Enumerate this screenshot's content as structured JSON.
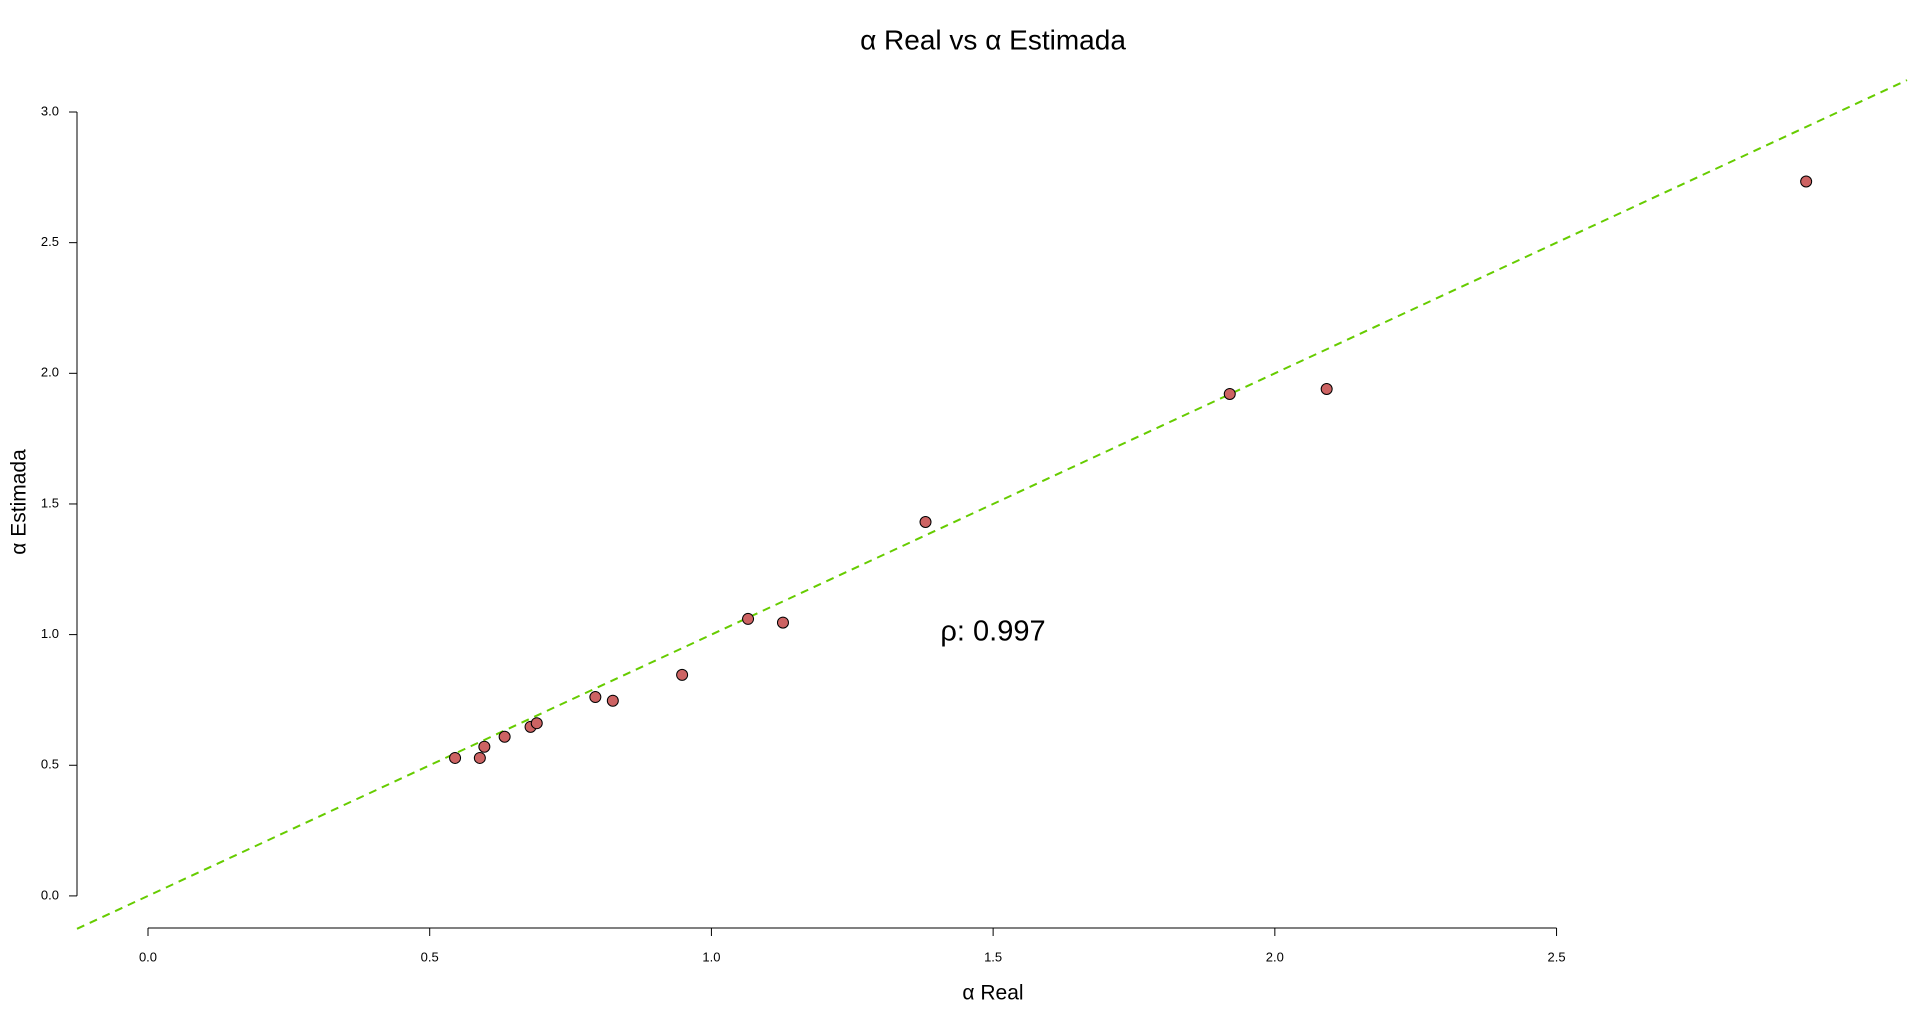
{
  "chart_data": {
    "type": "scatter",
    "title": "α Real vs α Estimada",
    "x_label": "α Real",
    "y_label": "α Estimada",
    "annotation": "ρ: 0.997",
    "x": [
      0.545,
      0.589,
      0.597,
      0.633,
      0.679,
      0.69,
      0.794,
      0.825,
      0.948,
      1.065,
      1.127,
      1.38,
      1.92,
      2.092,
      2.943
    ],
    "series": [
      {
        "name": "α Estimada",
        "color": "#cd6363",
        "values": [
          0.528,
          0.528,
          0.571,
          0.609,
          0.647,
          0.661,
          0.761,
          0.747,
          0.846,
          1.06,
          1.046,
          1.431,
          1.921,
          1.94,
          2.734
        ]
      }
    ],
    "reference_line": {
      "slope": 1,
      "intercept": 0,
      "color": "#66cc00"
    },
    "xlim": [
      -0.126,
      3.122
    ],
    "ylim": [
      -0.119,
      3.134
    ],
    "xticks": [
      {
        "value": 0,
        "label": "0.0"
      },
      0.5,
      {
        "value": 1,
        "label": "1.0"
      },
      1.5,
      {
        "value": 2,
        "label": "2.0"
      },
      2.5
    ],
    "yticks": [
      {
        "value": 0,
        "label": "0.0"
      },
      0.5,
      {
        "value": 1,
        "label": "1.0"
      },
      1.5,
      {
        "value": 2,
        "label": "2.0"
      },
      2.5,
      {
        "value": 3,
        "label": "3.0"
      }
    ]
  }
}
